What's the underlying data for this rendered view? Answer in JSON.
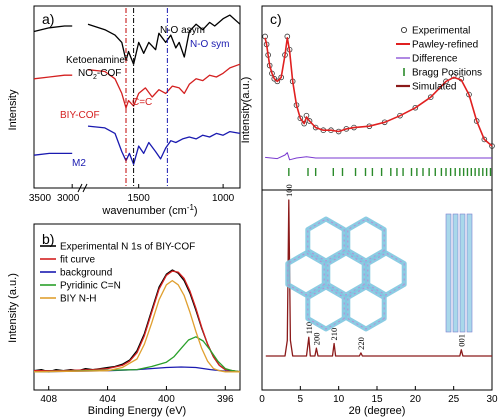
{
  "chart_data": [
    {
      "panel": "a)",
      "type": "line",
      "xlabel": "wavenumber (cm",
      "xlabel_sup": "-1",
      "xlabel_tail": ")",
      "ylabel": "Intensity",
      "xlim": [
        3500,
        900
      ],
      "xticks": [
        "3500",
        "3000",
        "1500",
        "1000"
      ],
      "axis_break": true,
      "vlines": [
        {
          "x": 1575,
          "color": "#c00000",
          "style": "dash-dot"
        },
        {
          "x": 1530,
          "color": "#000000",
          "style": "dash-dot"
        },
        {
          "x": 1330,
          "color": "#1a1ab0",
          "style": "dash-dot"
        }
      ],
      "annotations": [
        {
          "text": "N-O asym",
          "color": "#000000"
        },
        {
          "text": "N-O sym",
          "color": "#1a1ab0"
        },
        {
          "text": "C=C",
          "color": "#c00000"
        }
      ],
      "series": [
        {
          "name_line1": "Ketoenamine-",
          "name_line2": "NO",
          "name_sub": "2",
          "name_tail": "-COF",
          "color": "#000000",
          "x": [
            3500,
            3300,
            3100,
            3000,
            1800,
            1700,
            1640,
            1600,
            1575,
            1560,
            1530,
            1500,
            1470,
            1440,
            1400,
            1380,
            1340,
            1310,
            1280,
            1260,
            1230,
            1200,
            1160,
            1120,
            1080,
            1050,
            1000,
            960,
            900
          ],
          "y": [
            0.86,
            0.88,
            0.89,
            0.89,
            0.9,
            0.87,
            0.84,
            0.8,
            0.7,
            0.75,
            0.68,
            0.8,
            0.74,
            0.8,
            0.76,
            0.85,
            0.8,
            0.84,
            0.77,
            0.8,
            0.72,
            0.86,
            0.9,
            0.87,
            0.91,
            0.89,
            0.93,
            0.95,
            0.9
          ]
        },
        {
          "name": "BIY-COF",
          "color": "#d42020",
          "x": [
            3500,
            3300,
            3100,
            3000,
            1800,
            1700,
            1640,
            1600,
            1575,
            1560,
            1530,
            1500,
            1460,
            1420,
            1380,
            1340,
            1300,
            1260,
            1230,
            1200,
            1160,
            1120,
            1080,
            1040,
            1000,
            960,
            900
          ],
          "y": [
            0.6,
            0.61,
            0.62,
            0.62,
            0.65,
            0.64,
            0.6,
            0.52,
            0.44,
            0.48,
            0.45,
            0.52,
            0.55,
            0.5,
            0.54,
            0.52,
            0.56,
            0.55,
            0.52,
            0.57,
            0.6,
            0.59,
            0.62,
            0.61,
            0.63,
            0.66,
            0.68
          ]
        },
        {
          "name": "M2",
          "color": "#1a1ab0",
          "x": [
            3500,
            3300,
            3100,
            3000,
            1800,
            1700,
            1640,
            1600,
            1575,
            1555,
            1530,
            1500,
            1470,
            1440,
            1400,
            1370,
            1340,
            1310,
            1280,
            1240,
            1200,
            1160,
            1120,
            1080,
            1040,
            1000,
            960,
            900
          ],
          "y": [
            0.18,
            0.19,
            0.19,
            0.19,
            0.34,
            0.33,
            0.3,
            0.2,
            0.15,
            0.19,
            0.13,
            0.23,
            0.19,
            0.25,
            0.2,
            0.16,
            0.22,
            0.26,
            0.25,
            0.27,
            0.28,
            0.27,
            0.29,
            0.28,
            0.3,
            0.29,
            0.31,
            0.3
          ]
        }
      ]
    },
    {
      "panel": "b)",
      "type": "line",
      "xlabel": "Binding Energy (eV)",
      "ylabel": "Intensity (a.u.)",
      "xlim": [
        409,
        395
      ],
      "xticks": [
        408,
        404,
        400,
        396
      ],
      "series": [
        {
          "name": "Experimental N 1s of BIY-COF",
          "color": "#000000",
          "x": [
            409,
            408.5,
            408,
            407.5,
            407,
            406.5,
            406,
            405.5,
            405,
            404.5,
            404,
            403.5,
            403,
            402.5,
            402,
            401.5,
            401,
            400.5,
            400,
            399.6,
            399.2,
            398.8,
            398.4,
            398,
            397.6,
            397.2,
            396.8,
            396.4,
            396,
            395.6,
            395
          ],
          "y": [
            0.05,
            0.06,
            0.04,
            0.06,
            0.05,
            0.06,
            0.05,
            0.07,
            0.06,
            0.07,
            0.08,
            0.09,
            0.11,
            0.15,
            0.24,
            0.4,
            0.62,
            0.84,
            0.96,
            1.0,
            0.97,
            0.9,
            0.78,
            0.62,
            0.45,
            0.3,
            0.18,
            0.1,
            0.06,
            0.05,
            0.04
          ]
        },
        {
          "name": "fit curve",
          "color": "#d42020",
          "x": [
            409,
            407,
            405,
            404,
            403,
            402.5,
            402,
            401.5,
            401,
            400.5,
            400,
            399.6,
            399.2,
            398.8,
            398.4,
            398,
            397.6,
            397.2,
            396.8,
            396.4,
            396,
            395.5,
            395
          ],
          "y": [
            0.05,
            0.05,
            0.06,
            0.07,
            0.1,
            0.14,
            0.22,
            0.38,
            0.6,
            0.82,
            0.95,
            0.99,
            0.98,
            0.92,
            0.8,
            0.64,
            0.46,
            0.3,
            0.18,
            0.1,
            0.06,
            0.05,
            0.04
          ]
        },
        {
          "name": "background",
          "color": "#1a1ab0",
          "x": [
            409,
            404,
            402,
            400,
            399,
            398,
            397,
            396,
            395
          ],
          "y": [
            0.04,
            0.05,
            0.06,
            0.08,
            0.085,
            0.08,
            0.06,
            0.045,
            0.04
          ]
        },
        {
          "name": "Pyridinic C=N",
          "color": "#2aa02a",
          "x": [
            409,
            402,
            401,
            400,
            399.5,
            399,
            398.5,
            398,
            397.5,
            397,
            396.5,
            396,
            395.5,
            395
          ],
          "y": [
            0.04,
            0.06,
            0.09,
            0.13,
            0.18,
            0.26,
            0.34,
            0.37,
            0.33,
            0.24,
            0.14,
            0.07,
            0.05,
            0.04
          ]
        },
        {
          "name": "BIY N-H",
          "color": "#e0a030",
          "x": [
            409,
            404,
            403,
            402,
            401.5,
            401,
            400.5,
            400,
            399.6,
            399.2,
            398.8,
            398.4,
            398,
            397.6,
            397.2,
            396.8,
            396.4,
            396,
            395
          ],
          "y": [
            0.04,
            0.05,
            0.08,
            0.16,
            0.3,
            0.5,
            0.72,
            0.86,
            0.9,
            0.86,
            0.76,
            0.6,
            0.42,
            0.26,
            0.14,
            0.07,
            0.05,
            0.04,
            0.04
          ]
        }
      ]
    },
    {
      "panel": "c)",
      "type": "line",
      "xlabel": "2θ (degree)",
      "ylabel": "Intensity(a.u.)",
      "xlim": [
        0,
        30
      ],
      "xticks": [
        0,
        5,
        10,
        15,
        20,
        25,
        30
      ],
      "top": {
        "series": [
          {
            "name": "Experimental",
            "color": "#333333",
            "marker": "circle",
            "x": [
              0.4,
              0.6,
              0.8,
              1.0,
              1.3,
              1.6,
              2.0,
              2.5,
              3.0,
              3.3,
              3.6,
              4.0,
              4.5,
              5.0,
              5.5,
              5.8,
              6.2,
              7.0,
              8.0,
              9.0,
              10,
              11,
              12,
              14,
              16,
              18,
              20,
              22,
              24,
              25,
              26,
              27,
              28,
              29,
              30
            ],
            "y": [
              0.86,
              0.8,
              0.72,
              0.64,
              0.58,
              0.54,
              0.52,
              0.55,
              0.72,
              0.86,
              0.76,
              0.52,
              0.34,
              0.24,
              0.2,
              0.26,
              0.22,
              0.17,
              0.15,
              0.15,
              0.14,
              0.16,
              0.17,
              0.18,
              0.21,
              0.26,
              0.32,
              0.4,
              0.52,
              0.56,
              0.54,
              0.42,
              0.22,
              0.08,
              0.03
            ]
          },
          {
            "name": "Pawley-refined",
            "color": "#e02020",
            "x": [
              0.4,
              0.6,
              0.8,
              1.0,
              1.3,
              1.6,
              2.0,
              2.5,
              3.0,
              3.3,
              3.6,
              4.0,
              4.5,
              5.0,
              5.5,
              5.8,
              6.2,
              7.0,
              8.0,
              9.0,
              10,
              11,
              12,
              14,
              16,
              18,
              20,
              22,
              24,
              25,
              26,
              27,
              28,
              29,
              30
            ],
            "y": [
              0.85,
              0.8,
              0.72,
              0.64,
              0.58,
              0.54,
              0.52,
              0.55,
              0.72,
              0.85,
              0.75,
              0.52,
              0.34,
              0.24,
              0.2,
              0.25,
              0.22,
              0.17,
              0.15,
              0.15,
              0.14,
              0.16,
              0.17,
              0.18,
              0.21,
              0.26,
              0.32,
              0.4,
              0.52,
              0.55,
              0.53,
              0.42,
              0.22,
              0.08,
              0.03
            ]
          },
          {
            "name": "Difference",
            "color": "#7a3ad0",
            "x": [
              0.4,
              2,
              3,
              3.3,
              3.6,
              4.5,
              5.8,
              7,
              10,
              15,
              20,
              25,
              30
            ],
            "y": [
              -0.78,
              -0.8,
              -0.74,
              -0.7,
              -0.82,
              -0.79,
              -0.77,
              -0.79,
              -0.79,
              -0.79,
              -0.79,
              -0.79,
              -0.79
            ]
          }
        ],
        "bragg": {
          "name": "Bragg Positions",
          "color": "#2a8a2a",
          "x": [
            3.5,
            6.0,
            7.0,
            9.3,
            10.5,
            12.2,
            13.5,
            14.4,
            15.6,
            16.8,
            17.6,
            18.4,
            19.5,
            20.2,
            21.0,
            21.8,
            22.6,
            23.4,
            24.0,
            24.6,
            25.2,
            25.8,
            26.3,
            26.8,
            27.3,
            27.8,
            28.3,
            28.8,
            29.3,
            29.8
          ]
        }
      },
      "bottom": {
        "series": [
          {
            "name": "Simulated",
            "color": "#8b1a1a",
            "x": [
              0.5,
              3.0,
              3.3,
              3.5,
              3.7,
              4.0,
              5.8,
              6.1,
              6.3,
              6.9,
              7.1,
              7.3,
              9.2,
              9.4,
              9.6,
              12.7,
              12.9,
              13.1,
              25.8,
              26.0,
              26.2,
              30
            ],
            "y": [
              0.0,
              0.0,
              0.1,
              1.0,
              0.1,
              0.0,
              0.0,
              0.12,
              0.0,
              0.0,
              0.05,
              0.0,
              0.0,
              0.08,
              0.0,
              0.0,
              0.02,
              0.0,
              0.0,
              0.04,
              0.0,
              0.0
            ]
          }
        ],
        "peak_labels": [
          {
            "text": "100",
            "x": 3.5
          },
          {
            "text": "110",
            "x": 6.1
          },
          {
            "text": "200",
            "x": 7.1
          },
          {
            "text": "210",
            "x": 9.4
          },
          {
            "text": "220",
            "x": 12.9
          },
          {
            "text": "001",
            "x": 26.0
          }
        ]
      }
    }
  ]
}
